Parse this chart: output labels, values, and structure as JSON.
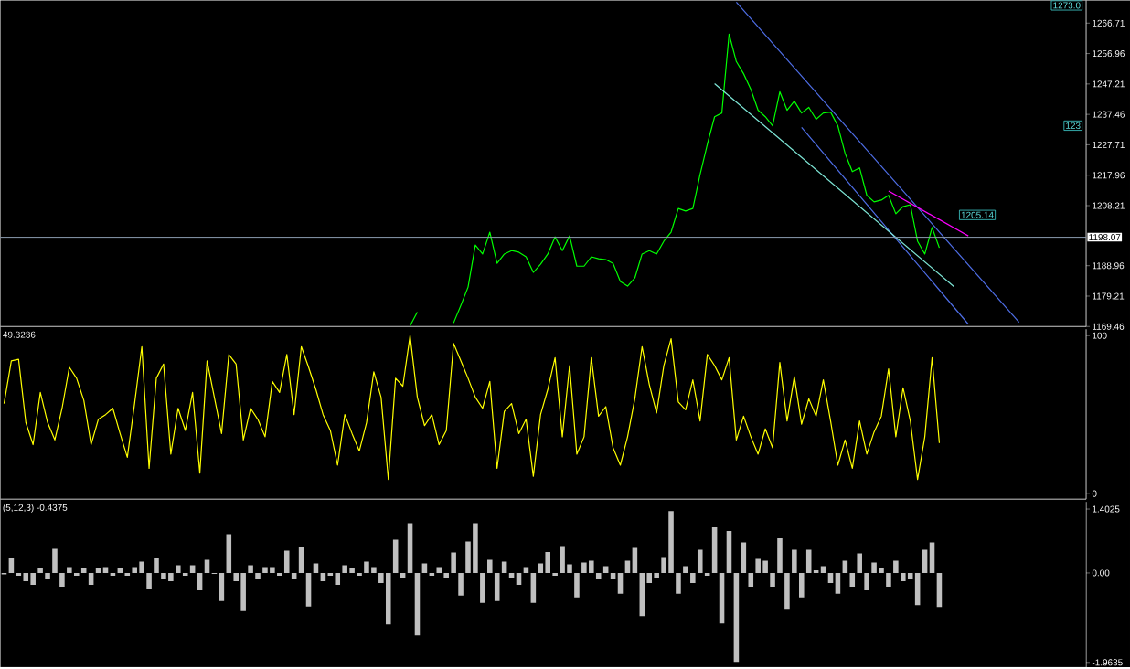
{
  "chart_data": [
    {
      "type": "line",
      "tick_labels": "y",
      "categories": [
        null,
        null,
        null,
        null,
        null,
        null,
        null,
        null,
        null,
        null,
        null,
        null,
        null,
        null,
        null,
        null,
        null,
        null,
        null,
        null,
        null,
        null,
        null,
        null,
        null,
        null,
        null,
        null,
        null,
        null,
        null,
        null,
        null,
        null,
        null,
        null,
        null,
        null,
        null,
        null,
        null,
        null,
        null,
        null,
        null,
        null,
        null,
        null,
        null,
        null,
        null,
        null,
        null,
        null,
        null,
        null,
        null,
        null,
        null,
        null,
        null,
        null,
        null,
        null,
        null,
        null,
        null,
        null,
        null,
        null,
        null,
        null,
        null,
        null,
        null,
        null,
        null,
        null,
        null,
        null,
        null,
        null,
        null,
        null,
        null,
        null,
        null,
        null,
        null,
        null,
        null,
        null,
        null,
        null,
        null,
        null,
        null,
        null,
        null,
        null,
        null,
        null,
        null,
        null,
        null,
        null,
        null,
        null,
        null,
        null,
        null,
        null,
        null,
        null,
        null,
        null,
        null,
        null,
        null,
        null,
        null,
        null,
        null,
        null,
        null,
        null,
        null,
        null,
        null,
        null,
        null,
        null,
        null,
        null,
        null,
        null,
        null,
        null,
        null,
        null,
        null,
        null,
        null,
        null,
        null,
        null,
        null,
        null,
        null,
        null
      ],
      "ylim": [
        1169.46,
        1274.0
      ],
      "yticks": [
        1169.46,
        1179.21,
        1188.96,
        1208.21,
        1217.96,
        1227.71,
        1237.46,
        1247.21,
        1256.96,
        1266.71
      ],
      "series": [
        {
          "color": "#00ff00",
          "values": [
            null,
            null,
            null,
            null,
            null,
            null,
            null,
            null,
            null,
            null,
            null,
            null,
            null,
            null,
            null,
            null,
            null,
            null,
            null,
            null,
            null,
            null,
            null,
            null,
            null,
            null,
            null,
            null,
            null,
            null,
            null,
            null,
            null,
            null,
            null,
            null,
            null,
            null,
            null,
            null,
            null,
            null,
            null,
            null,
            null,
            null,
            null,
            null,
            null,
            null,
            null,
            null,
            null,
            null,
            null,
            null,
            1169.7,
            1174.1,
            null,
            null,
            null,
            null,
            1170.6,
            1176.2,
            1182.1,
            1195.6,
            1192.7,
            1199.7,
            1189.7,
            1192.7,
            1193.8,
            1193.3,
            1191.8,
            1186.8,
            1189.4,
            1192.7,
            1198.2,
            1193.8,
            1198.5,
            1188.8,
            1188.8,
            1191.8,
            1191.2,
            1190.9,
            1189.7,
            1183.9,
            1182.4,
            1185.0,
            1192.7,
            1193.8,
            1192.7,
            1196.8,
            1199.7,
            1207.3,
            1206.5,
            1207.3,
            1218.2,
            1227.9,
            1236.7,
            1237.9,
            1263.2,
            1254.4,
            1250.5,
            1245.5,
            1238.8,
            1236.7,
            1233.8,
            1244.7,
            1238.8,
            1241.7,
            1237.9,
            1239.7,
            1235.9,
            1237.9,
            1238.2,
            1233.8,
            1225.0,
            1219.1,
            1220.3,
            1211.5,
            1209.4,
            1210.0,
            1211.5,
            1205.6,
            1207.9,
            1208.5,
            1196.8,
            1192.7,
            1201.2,
            1194.7,
            null,
            null,
            null,
            null,
            null,
            null,
            null,
            null,
            null,
            null,
            null,
            null,
            null,
            null,
            null,
            null,
            null,
            null,
            null,
            null
          ]
        },
        {
          "color": "#4f6fe8",
          "values": [
            null,
            null,
            null,
            null,
            null,
            null,
            null,
            null,
            null,
            null,
            null,
            null,
            null,
            null,
            null,
            null,
            null,
            null,
            null,
            null,
            null,
            null,
            null,
            null,
            null,
            null,
            null,
            null,
            null,
            null,
            null,
            null,
            null,
            null,
            null,
            null,
            null,
            null,
            null,
            null,
            null,
            null,
            null,
            null,
            null,
            null,
            null,
            null,
            null,
            null,
            null,
            null,
            null,
            null,
            null,
            null,
            null,
            null,
            null,
            null,
            null,
            null,
            null,
            null,
            null,
            null,
            null,
            null,
            null,
            null,
            null,
            null,
            null,
            null,
            null,
            null,
            null,
            null,
            null,
            null,
            null,
            null,
            null,
            null,
            null,
            null,
            null,
            null,
            null,
            null,
            null,
            null,
            null,
            null,
            null,
            null,
            null,
            null,
            null,
            null,
            null,
            1273.4,
            null,
            null,
            null,
            null,
            null,
            null,
            null,
            null,
            null,
            null,
            null,
            null,
            null,
            null,
            null,
            null,
            null,
            null,
            null,
            null,
            null,
            null,
            null,
            null,
            null,
            null,
            null,
            null,
            null,
            null,
            null,
            null,
            null,
            null,
            null,
            null,
            null,
            null,
            1170.8,
            null,
            null,
            null,
            null,
            null,
            null,
            null,
            null,
            null
          ]
        },
        {
          "color": "#4f6fe8",
          "values": [
            null,
            null,
            null,
            null,
            null,
            null,
            null,
            null,
            null,
            null,
            null,
            null,
            null,
            null,
            null,
            null,
            null,
            null,
            null,
            null,
            null,
            null,
            null,
            null,
            null,
            null,
            null,
            null,
            null,
            null,
            null,
            null,
            null,
            null,
            null,
            null,
            null,
            null,
            null,
            null,
            null,
            null,
            null,
            null,
            null,
            null,
            null,
            null,
            null,
            null,
            null,
            null,
            null,
            null,
            null,
            null,
            null,
            null,
            null,
            null,
            null,
            null,
            null,
            null,
            null,
            null,
            null,
            null,
            null,
            null,
            null,
            null,
            null,
            null,
            null,
            null,
            null,
            null,
            null,
            null,
            null,
            null,
            null,
            null,
            null,
            null,
            null,
            null,
            null,
            null,
            null,
            null,
            null,
            null,
            null,
            null,
            null,
            null,
            null,
            null,
            null,
            null,
            null,
            null,
            null,
            null,
            null,
            null,
            null,
            null,
            1233.3,
            null,
            null,
            null,
            null,
            null,
            null,
            null,
            null,
            null,
            null,
            null,
            null,
            null,
            null,
            null,
            null,
            null,
            null,
            null,
            null,
            null,
            null,
            1170.2,
            null,
            null,
            null,
            null,
            null,
            null,
            null,
            null,
            null,
            null,
            null,
            null,
            null,
            null,
            null,
            null
          ]
        },
        {
          "color": "#7fe8d8",
          "values": [
            null,
            null,
            null,
            null,
            null,
            null,
            null,
            null,
            null,
            null,
            null,
            null,
            null,
            null,
            null,
            null,
            null,
            null,
            null,
            null,
            null,
            null,
            null,
            null,
            null,
            null,
            null,
            null,
            null,
            null,
            null,
            null,
            null,
            null,
            null,
            null,
            null,
            null,
            null,
            null,
            null,
            null,
            null,
            null,
            null,
            null,
            null,
            null,
            null,
            null,
            null,
            null,
            null,
            null,
            null,
            null,
            null,
            null,
            null,
            null,
            null,
            null,
            null,
            null,
            null,
            null,
            null,
            null,
            null,
            null,
            null,
            null,
            null,
            null,
            null,
            null,
            null,
            null,
            null,
            null,
            null,
            null,
            null,
            null,
            null,
            null,
            null,
            null,
            null,
            null,
            null,
            null,
            null,
            null,
            null,
            null,
            null,
            null,
            1247.3,
            null,
            null,
            null,
            null,
            null,
            null,
            null,
            null,
            null,
            null,
            null,
            null,
            null,
            null,
            null,
            null,
            null,
            null,
            null,
            null,
            null,
            null,
            null,
            null,
            null,
            null,
            null,
            null,
            null,
            null,
            null,
            null,
            1182.3,
            null,
            null,
            null,
            null,
            null,
            null,
            null,
            null,
            null,
            null,
            null,
            null,
            null,
            null,
            null,
            null,
            null,
            null
          ]
        },
        {
          "color": "#ff00ff",
          "values": [
            null,
            null,
            null,
            null,
            null,
            null,
            null,
            null,
            null,
            null,
            null,
            null,
            null,
            null,
            null,
            null,
            null,
            null,
            null,
            null,
            null,
            null,
            null,
            null,
            null,
            null,
            null,
            null,
            null,
            null,
            null,
            null,
            null,
            null,
            null,
            null,
            null,
            null,
            null,
            null,
            null,
            null,
            null,
            null,
            null,
            null,
            null,
            null,
            null,
            null,
            null,
            null,
            null,
            null,
            null,
            null,
            null,
            null,
            null,
            null,
            null,
            null,
            null,
            null,
            null,
            null,
            null,
            null,
            null,
            null,
            null,
            null,
            null,
            null,
            null,
            null,
            null,
            null,
            null,
            null,
            null,
            null,
            null,
            null,
            null,
            null,
            null,
            null,
            null,
            null,
            null,
            null,
            null,
            null,
            null,
            null,
            null,
            null,
            null,
            null,
            null,
            null,
            null,
            null,
            null,
            null,
            null,
            null,
            null,
            null,
            null,
            null,
            null,
            null,
            null,
            null,
            null,
            null,
            null,
            null,
            null,
            null,
            1212.9,
            null,
            null,
            null,
            null,
            null,
            null,
            null,
            null,
            null,
            null,
            1198.5,
            null,
            null,
            null,
            null,
            null,
            null,
            null,
            null,
            null,
            null,
            null,
            null,
            null,
            null,
            null,
            null
          ]
        }
      ],
      "ref_lines": [
        {
          "axis": "y",
          "value": 1198.07,
          "label": "1198.07",
          "color": "#8c9cb0"
        }
      ],
      "annotations": [
        "1273.0",
        "123",
        "1205.14"
      ]
    },
    {
      "type": "line",
      "tick_labels": "y",
      "categories": [
        null,
        null,
        null,
        null,
        null,
        null,
        null,
        null,
        null,
        null,
        null,
        null,
        null,
        null,
        null,
        null,
        null,
        null,
        null,
        null,
        null,
        null,
        null,
        null,
        null,
        null,
        null,
        null,
        null,
        null,
        null,
        null,
        null,
        null,
        null,
        null,
        null,
        null,
        null,
        null,
        null,
        null,
        null,
        null,
        null,
        null,
        null,
        null,
        null,
        null,
        null,
        null,
        null,
        null,
        null,
        null,
        null,
        null,
        null,
        null,
        null,
        null,
        null,
        null,
        null,
        null,
        null,
        null,
        null,
        null,
        null,
        null,
        null,
        null,
        null,
        null,
        null,
        null,
        null,
        null,
        null,
        null,
        null,
        null,
        null,
        null,
        null,
        null,
        null,
        null,
        null,
        null,
        null,
        null,
        null,
        null,
        null,
        null,
        null,
        null,
        null,
        null,
        null,
        null,
        null,
        null,
        null,
        null,
        null,
        null,
        null,
        null,
        null,
        null,
        null,
        null,
        null,
        null,
        null,
        null,
        null,
        null,
        null,
        null,
        null,
        null,
        null,
        null,
        null,
        null,
        null,
        null,
        null,
        null,
        null,
        null,
        null,
        null,
        null,
        null,
        null,
        null,
        null,
        null,
        null,
        null,
        null,
        null,
        null,
        null
      ],
      "ylim": [
        -3.5,
        104
      ],
      "yticks": [
        0,
        100
      ],
      "series": [
        {
          "color": "#ffff00",
          "values": [
            57,
            84,
            85,
            45,
            31,
            64,
            45,
            34,
            54,
            80,
            73,
            59,
            31,
            47,
            50,
            54,
            38,
            23,
            57,
            93,
            16,
            73,
            82,
            25,
            54,
            40,
            64,
            13,
            84,
            61,
            38,
            88,
            82,
            34,
            54,
            47,
            36,
            71,
            64,
            88,
            50,
            93,
            80,
            66,
            50,
            40,
            18,
            50,
            38,
            27,
            45,
            77,
            61,
            9,
            73,
            68,
            100,
            61,
            43,
            50,
            31,
            40,
            95,
            84,
            73,
            61,
            54,
            71,
            16,
            52,
            57,
            38,
            47,
            11,
            50,
            66,
            86,
            36,
            81,
            25,
            36,
            86,
            49,
            55,
            29,
            18,
            36,
            60,
            93,
            69,
            51,
            81,
            98,
            58,
            53,
            72,
            46,
            88,
            81,
            72,
            86,
            34,
            49,
            36,
            25,
            41,
            29,
            83,
            46,
            74,
            44,
            60,
            49,
            72,
            46,
            18,
            34,
            16,
            46,
            25,
            39,
            49,
            79,
            36,
            67,
            46,
            9,
            36,
            86,
            32,
            null,
            null,
            null,
            null,
            null,
            null,
            null,
            null,
            null,
            null,
            null,
            null,
            null,
            null,
            null,
            null,
            null,
            null,
            null,
            null
          ]
        }
      ],
      "annotations": [
        "49.3236"
      ]
    },
    {
      "type": "bar",
      "tick_labels": "y",
      "categories": [
        null,
        null,
        null,
        null,
        null,
        null,
        null,
        null,
        null,
        null,
        null,
        null,
        null,
        null,
        null,
        null,
        null,
        null,
        null,
        null,
        null,
        null,
        null,
        null,
        null,
        null,
        null,
        null,
        null,
        null,
        null,
        null,
        null,
        null,
        null,
        null,
        null,
        null,
        null,
        null,
        null,
        null,
        null,
        null,
        null,
        null,
        null,
        null,
        null,
        null,
        null,
        null,
        null,
        null,
        null,
        null,
        null,
        null,
        null,
        null,
        null,
        null,
        null,
        null,
        null,
        null,
        null,
        null,
        null,
        null,
        null,
        null,
        null,
        null,
        null,
        null,
        null,
        null,
        null,
        null,
        null,
        null,
        null,
        null,
        null,
        null,
        null,
        null,
        null,
        null,
        null,
        null,
        null,
        null,
        null,
        null,
        null,
        null,
        null,
        null,
        null,
        null,
        null,
        null,
        null,
        null,
        null,
        null,
        null,
        null,
        null,
        null,
        null,
        null,
        null,
        null,
        null,
        null,
        null,
        null,
        null,
        null,
        null,
        null,
        null,
        null,
        null,
        null,
        null,
        null,
        null,
        null,
        null,
        null,
        null,
        null,
        null,
        null,
        null,
        null,
        null,
        null,
        null,
        null,
        null,
        null,
        null,
        null,
        null,
        null
      ],
      "ylim": [
        -2.07,
        1.56
      ],
      "yticks": [
        1.4025,
        {
          "value": 0,
          "label": "0.00"
        },
        -1.9635
      ],
      "series": [
        {
          "color": "#c0c0c0",
          "values": [
            -0.03,
            0.33,
            -0.06,
            -0.18,
            -0.26,
            0.1,
            -0.14,
            0.53,
            -0.3,
            0.13,
            -0.06,
            0.1,
            -0.26,
            0.1,
            0.13,
            -0.06,
            0.1,
            -0.06,
            0.13,
            0.25,
            -0.34,
            0.33,
            -0.14,
            -0.18,
            0.17,
            -0.06,
            0.17,
            -0.38,
            0.29,
            -0.02,
            -0.62,
            0.85,
            -0.18,
            -0.82,
            0.17,
            -0.14,
            0.13,
            0.13,
            -0.06,
            0.49,
            -0.14,
            0.57,
            -0.74,
            0.21,
            -0.18,
            -0.06,
            -0.26,
            0.17,
            0.1,
            -0.06,
            0.25,
            0.13,
            -0.22,
            -1.13,
            0.73,
            -0.1,
            1.09,
            -1.37,
            0.21,
            -0.06,
            0.13,
            -0.1,
            0.45,
            -0.5,
            0.69,
            1.09,
            -0.66,
            0.29,
            -0.62,
            0.25,
            -0.1,
            -0.26,
            0.13,
            -0.66,
            0.21,
            0.46,
            -0.06,
            0.59,
            0.19,
            -0.54,
            0.23,
            0.27,
            -0.14,
            0.15,
            -0.14,
            -0.46,
            0.27,
            0.55,
            -0.95,
            -0.22,
            -0.1,
            0.35,
            1.36,
            -0.46,
            0.15,
            -0.22,
            0.51,
            -0.06,
            1.0,
            -1.11,
            0.92,
            -1.95,
            0.67,
            -0.3,
            0.31,
            0.27,
            -0.3,
            0.76,
            -0.79,
            0.51,
            -0.54,
            0.51,
            0.06,
            0.15,
            -0.22,
            -0.46,
            0.27,
            -0.3,
            0.43,
            -0.38,
            0.23,
            0.11,
            -0.3,
            0.27,
            -0.18,
            -0.14,
            -0.71,
            0.51,
            0.67,
            -0.75,
            null,
            null,
            null,
            null,
            null,
            null,
            null,
            null,
            null,
            null,
            null,
            null,
            null,
            null,
            null,
            null,
            null,
            null,
            null,
            null
          ]
        }
      ],
      "annotations": [
        "(5,12,3) -0.4375"
      ]
    }
  ]
}
